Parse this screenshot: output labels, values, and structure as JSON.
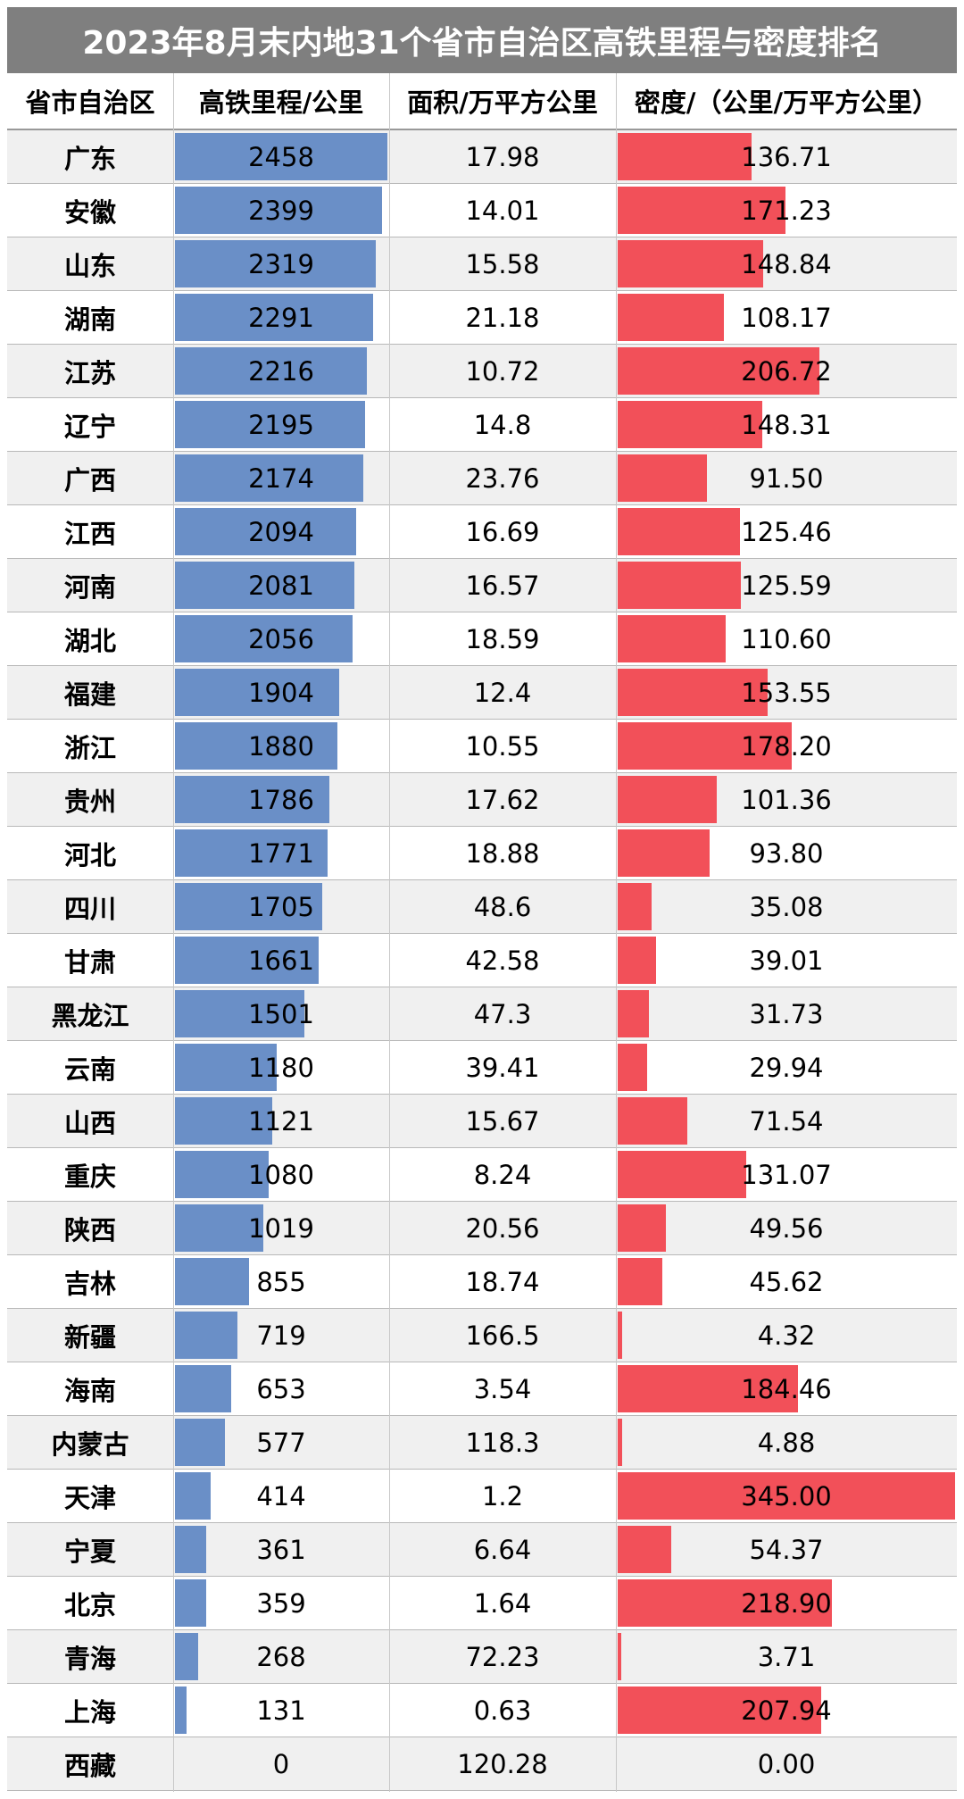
{
  "title": "2023年8月末内地31个省市自治区高铁里程与密度排名",
  "headers": {
    "province": "省市自治区",
    "km": "高铁里程/公里",
    "area": "面积/万平方公里",
    "density": "密度/（公里/万平方公里）"
  },
  "colors": {
    "header_bg": "#7f7f7f",
    "km_bar": "#6a8fc7",
    "density_bar": "#f25059",
    "stripe": "#f0f0f0"
  },
  "chart_data": {
    "type": "table",
    "title": "2023年8月末内地31个省市自治区高铁里程与密度排名",
    "columns": [
      "省市自治区",
      "高铁里程/公里",
      "面积/万平方公里",
      "密度/（公里/万平方公里）"
    ],
    "rows": [
      {
        "province": "广东",
        "km": "2458",
        "area": "17.98",
        "density": "136.71"
      },
      {
        "province": "安徽",
        "km": "2399",
        "area": "14.01",
        "density": "171.23"
      },
      {
        "province": "山东",
        "km": "2319",
        "area": "15.58",
        "density": "148.84"
      },
      {
        "province": "湖南",
        "km": "2291",
        "area": "21.18",
        "density": "108.17"
      },
      {
        "province": "江苏",
        "km": "2216",
        "area": "10.72",
        "density": "206.72"
      },
      {
        "province": "辽宁",
        "km": "2195",
        "area": "14.8",
        "density": "148.31"
      },
      {
        "province": "广西",
        "km": "2174",
        "area": "23.76",
        "density": "91.50"
      },
      {
        "province": "江西",
        "km": "2094",
        "area": "16.69",
        "density": "125.46"
      },
      {
        "province": "河南",
        "km": "2081",
        "area": "16.57",
        "density": "125.59"
      },
      {
        "province": "湖北",
        "km": "2056",
        "area": "18.59",
        "density": "110.60"
      },
      {
        "province": "福建",
        "km": "1904",
        "area": "12.4",
        "density": "153.55"
      },
      {
        "province": "浙江",
        "km": "1880",
        "area": "10.55",
        "density": "178.20"
      },
      {
        "province": "贵州",
        "km": "1786",
        "area": "17.62",
        "density": "101.36"
      },
      {
        "province": "河北",
        "km": "1771",
        "area": "18.88",
        "density": "93.80"
      },
      {
        "province": "四川",
        "km": "1705",
        "area": "48.6",
        "density": "35.08"
      },
      {
        "province": "甘肃",
        "km": "1661",
        "area": "42.58",
        "density": "39.01"
      },
      {
        "province": "黑龙江",
        "km": "1501",
        "area": "47.3",
        "density": "31.73"
      },
      {
        "province": "云南",
        "km": "1180",
        "area": "39.41",
        "density": "29.94"
      },
      {
        "province": "山西",
        "km": "1121",
        "area": "15.67",
        "density": "71.54"
      },
      {
        "province": "重庆",
        "km": "1080",
        "area": "8.24",
        "density": "131.07"
      },
      {
        "province": "陕西",
        "km": "1019",
        "area": "20.56",
        "density": "49.56"
      },
      {
        "province": "吉林",
        "km": "855",
        "area": "18.74",
        "density": "45.62"
      },
      {
        "province": "新疆",
        "km": "719",
        "area": "166.5",
        "density": "4.32"
      },
      {
        "province": "海南",
        "km": "653",
        "area": "3.54",
        "density": "184.46"
      },
      {
        "province": "内蒙古",
        "km": "577",
        "area": "118.3",
        "density": "4.88"
      },
      {
        "province": "天津",
        "km": "414",
        "area": "1.2",
        "density": "345.00"
      },
      {
        "province": "宁夏",
        "km": "361",
        "area": "6.64",
        "density": "54.37"
      },
      {
        "province": "北京",
        "km": "359",
        "area": "1.64",
        "density": "218.90"
      },
      {
        "province": "青海",
        "km": "268",
        "area": "72.23",
        "density": "3.71"
      },
      {
        "province": "上海",
        "km": "131",
        "area": "0.63",
        "density": "207.94"
      },
      {
        "province": "西藏",
        "km": "0",
        "area": "120.28",
        "density": "0.00"
      }
    ]
  }
}
